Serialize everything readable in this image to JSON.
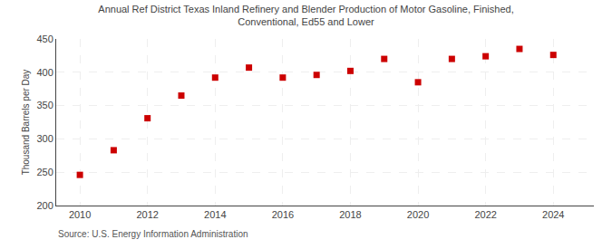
{
  "chart_data": {
    "type": "scatter",
    "title": "Annual Ref District Texas Inland Refinery and Blender Production of Motor Gasoline, Finished,\nConventional, Ed55 and Lower",
    "y_label": "Thousand Barrels per Day",
    "annotations": [
      "Source: U.S. Energy Information Administration"
    ],
    "x": [
      2010,
      2011,
      2012,
      2013,
      2014,
      2015,
      2016,
      2017,
      2018,
      2019,
      2020,
      2021,
      2022,
      2023,
      2024
    ],
    "values": [
      246,
      283,
      331,
      365,
      392,
      407,
      392,
      396,
      402,
      420,
      385,
      420,
      424,
      435,
      426
    ],
    "color": "#cc0000",
    "marker": "square",
    "xlim": [
      2009.3,
      2025.2
    ],
    "xticks": [
      2010,
      2012,
      2014,
      2016,
      2018,
      2020,
      2022,
      2024
    ],
    "ylim": [
      200,
      450
    ],
    "yticks": [
      200,
      250,
      300,
      350,
      400,
      450
    ],
    "grid": true
  }
}
